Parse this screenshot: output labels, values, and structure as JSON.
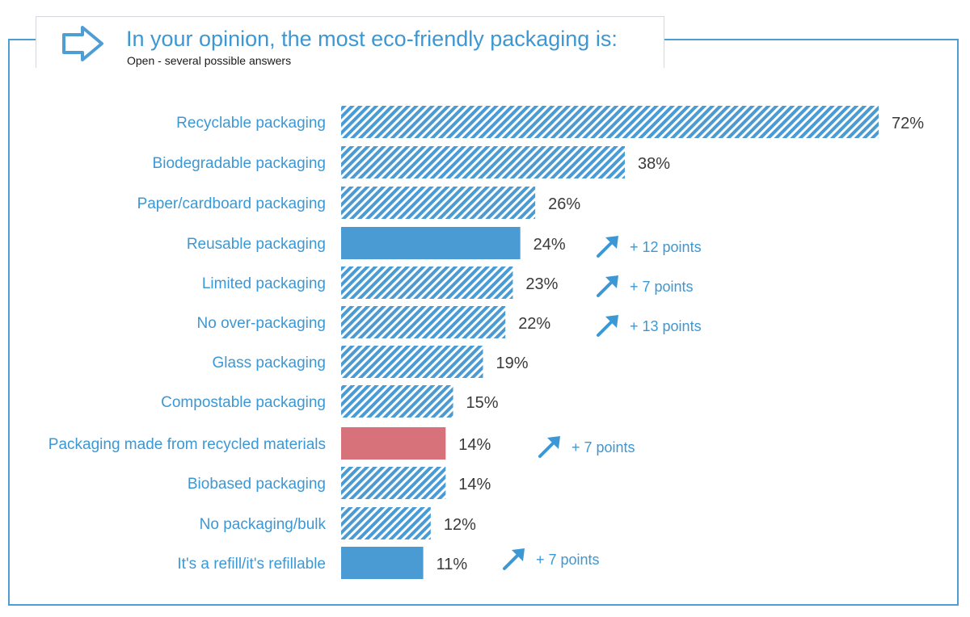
{
  "header": {
    "title": "In your opinion, the most eco-friendly packaging is:",
    "subtitle": "Open - several possible answers"
  },
  "icons": {
    "title_icon": "arrow-right-outline-icon",
    "trend_icon": "arrow-up-right-icon"
  },
  "colors": {
    "accent": "#3c98d4",
    "bar_blue": "#4a9bd4",
    "bar_red": "#d8727a",
    "label_text": "#3c98d4",
    "value_text": "#3a3a3a",
    "frame": "#4e9ed6"
  },
  "chart_data": {
    "type": "bar",
    "orientation": "horizontal",
    "categories": [
      "Recyclable packaging",
      "Biodegradable packaging",
      "Paper/cardboard packaging",
      "Reusable packaging",
      "Limited packaging",
      "No over-packaging",
      "Glass packaging",
      "Compostable packaging",
      "Packaging made from recycled materials",
      "Biobased packaging",
      "No packaging/bulk",
      "It's a refill/it's refillable"
    ],
    "values": [
      72,
      38,
      26,
      24,
      23,
      22,
      19,
      15,
      14,
      14,
      12,
      11
    ],
    "value_labels": [
      "72%",
      "38%",
      "26%",
      "24%",
      "23%",
      "22%",
      "19%",
      "15%",
      "14%",
      "14%",
      "12%",
      "11%"
    ],
    "unit": "%",
    "bar_styles": [
      "hatched",
      "hatched",
      "hatched",
      "solid-blue",
      "hatched",
      "hatched",
      "hatched",
      "hatched",
      "solid-red",
      "hatched",
      "hatched",
      "solid-blue"
    ],
    "annotations": [
      {
        "category": "Reusable packaging",
        "text": "+ 12 points",
        "direction": "up"
      },
      {
        "category": "Limited packaging",
        "text": "+ 7 points",
        "direction": "up"
      },
      {
        "category": "No over-packaging",
        "text": "+ 13 points",
        "direction": "up"
      },
      {
        "category": "Packaging made from recycled materials",
        "text": "+ 7 points",
        "direction": "up"
      },
      {
        "category": "It's a refill/it's refillable",
        "text": "+ 7 points",
        "direction": "up"
      }
    ],
    "xlim": [
      0,
      72
    ],
    "grid": false,
    "legend": "none"
  }
}
